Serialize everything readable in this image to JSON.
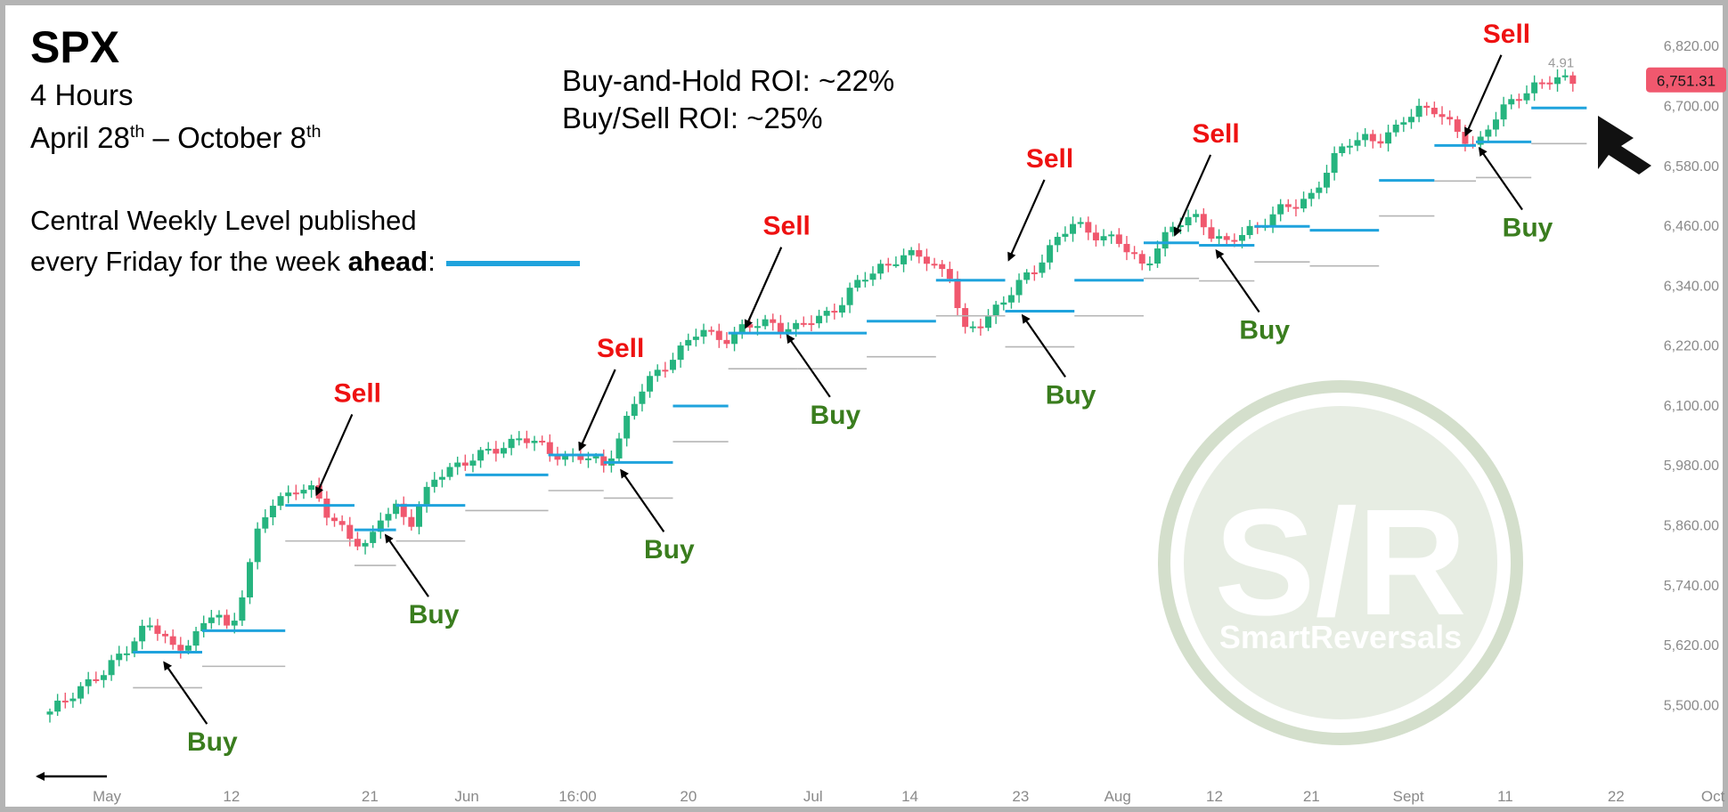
{
  "header": {
    "ticker": "SPX",
    "timeframe": "4 Hours",
    "date_range": {
      "start_month": "April 28",
      "start_suffix": "th",
      "separator": " – ",
      "end_month": "October 8",
      "end_suffix": "th"
    },
    "legend_line1": "Central Weekly Level published",
    "legend_line2_prefix": "every Friday for the week ",
    "legend_line2_bold": "ahead",
    "legend_line2_suffix": ":",
    "roi_buy_hold": "Buy-and-Hold ROI: ~22%",
    "roi_buy_sell": "Buy/Sell ROI: ~25%"
  },
  "colors": {
    "up": "#26b47f",
    "down": "#f0586e",
    "level": "#1fa3dd",
    "sell_text": "#ee1111",
    "buy_text": "#3a7d1e",
    "price_badge": "#f0586e",
    "watermark": "#d4dfcc"
  },
  "price_badge": "6,751.31",
  "small_label": "4.91",
  "watermark": {
    "big": "S/R",
    "small": "SmartReversals"
  },
  "chart_data": {
    "type": "candlestick",
    "y_ticks": [
      5500,
      5620,
      5740,
      5860,
      5980,
      6100,
      6220,
      6340,
      6460,
      6580,
      6700,
      6820
    ],
    "y_tick_labels": [
      "5,500.00",
      "5,620.00",
      "5,740.00",
      "5,860.00",
      "5,980.00",
      "6,100.00",
      "6,220.00",
      "6,340.00",
      "6,460.00",
      "6,580.00",
      "6,700.00",
      "6,820.00"
    ],
    "x_tick_labels": [
      {
        "label": "May",
        "bar": 0
      },
      {
        "label": "12",
        "bar": 9
      },
      {
        "label": "21",
        "bar": 19
      },
      {
        "label": "Jun",
        "bar": 26
      },
      {
        "label": "16:00",
        "bar": 34
      },
      {
        "label": "20",
        "bar": 42
      },
      {
        "label": "Jul",
        "bar": 51
      },
      {
        "label": "14",
        "bar": 58
      },
      {
        "label": "23",
        "bar": 66
      },
      {
        "label": "Aug",
        "bar": 73
      },
      {
        "label": "12",
        "bar": 80
      },
      {
        "label": "21",
        "bar": 87
      },
      {
        "label": "Sept",
        "bar": 94
      },
      {
        "label": "11",
        "bar": 101
      },
      {
        "label": "22",
        "bar": 109
      },
      {
        "label": "Oct",
        "bar": 116
      }
    ],
    "close_path": [
      [
        0,
        5480
      ],
      [
        2,
        5535
      ],
      [
        4,
        5560
      ],
      [
        5,
        5600
      ],
      [
        7,
        5660
      ],
      [
        8,
        5640
      ],
      [
        9,
        5610
      ],
      [
        11,
        5650
      ],
      [
        12,
        5690
      ],
      [
        13,
        5640
      ],
      [
        15,
        5840
      ],
      [
        16,
        5900
      ],
      [
        17,
        5920
      ],
      [
        18,
        5940
      ],
      [
        19,
        5925
      ],
      [
        20,
        5880
      ],
      [
        21,
        5860
      ],
      [
        22,
        5830
      ],
      [
        23,
        5810
      ],
      [
        24,
        5880
      ],
      [
        25,
        5900
      ],
      [
        26,
        5860
      ],
      [
        27,
        5910
      ],
      [
        28,
        5960
      ],
      [
        29,
        5980
      ],
      [
        30,
        5985
      ],
      [
        31,
        5995
      ],
      [
        32,
        6010
      ],
      [
        33,
        6025
      ],
      [
        34,
        6035
      ],
      [
        35,
        6020
      ],
      [
        36,
        6010
      ],
      [
        37,
        6000
      ],
      [
        38,
        5995
      ],
      [
        39,
        5990
      ],
      [
        40,
        5980
      ],
      [
        41,
        6030
      ],
      [
        42,
        6090
      ],
      [
        43,
        6140
      ],
      [
        44,
        6170
      ],
      [
        45,
        6200
      ],
      [
        46,
        6220
      ],
      [
        47,
        6250
      ],
      [
        48,
        6240
      ],
      [
        49,
        6235
      ],
      [
        50,
        6250
      ],
      [
        51,
        6260
      ],
      [
        52,
        6270
      ],
      [
        53,
        6255
      ],
      [
        54,
        6250
      ],
      [
        55,
        6270
      ],
      [
        56,
        6285
      ],
      [
        57,
        6300
      ],
      [
        58,
        6330
      ],
      [
        59,
        6360
      ],
      [
        60,
        6380
      ],
      [
        61,
        6390
      ],
      [
        62,
        6395
      ],
      [
        63,
        6400
      ],
      [
        64,
        6380
      ],
      [
        65,
        6360
      ],
      [
        66,
        6240
      ],
      [
        67,
        6260
      ],
      [
        68,
        6290
      ],
      [
        69,
        6310
      ],
      [
        70,
        6340
      ],
      [
        71,
        6370
      ],
      [
        72,
        6410
      ],
      [
        73,
        6440
      ],
      [
        74,
        6460
      ],
      [
        75,
        6450
      ],
      [
        76,
        6440
      ],
      [
        77,
        6430
      ],
      [
        78,
        6400
      ],
      [
        79,
        6380
      ],
      [
        80,
        6420
      ],
      [
        81,
        6450
      ],
      [
        82,
        6470
      ],
      [
        83,
        6480
      ],
      [
        84,
        6440
      ],
      [
        85,
        6420
      ],
      [
        86,
        6440
      ],
      [
        87,
        6460
      ],
      [
        88,
        6475
      ],
      [
        89,
        6490
      ],
      [
        90,
        6500
      ],
      [
        91,
        6520
      ],
      [
        92,
        6560
      ],
      [
        93,
        6600
      ],
      [
        94,
        6630
      ],
      [
        95,
        6640
      ],
      [
        96,
        6630
      ],
      [
        97,
        6640
      ],
      [
        98,
        6680
      ],
      [
        99,
        6700
      ],
      [
        100,
        6690
      ],
      [
        101,
        6660
      ],
      [
        102,
        6640
      ],
      [
        103,
        6620
      ],
      [
        104,
        6660
      ],
      [
        105,
        6690
      ],
      [
        106,
        6720
      ],
      [
        107,
        6740
      ],
      [
        108,
        6745
      ],
      [
        109,
        6750
      ],
      [
        110,
        6751.31
      ]
    ],
    "central_levels": [
      {
        "x0": 6,
        "x1": 11,
        "y": 5605
      },
      {
        "x0": 11,
        "x1": 17,
        "y": 5648
      },
      {
        "x0": 17,
        "x1": 22,
        "y": 5899
      },
      {
        "x0": 22,
        "x1": 25,
        "y": 5850
      },
      {
        "x0": 25,
        "x1": 30,
        "y": 5899
      },
      {
        "x0": 30,
        "x1": 36,
        "y": 5960
      },
      {
        "x0": 36,
        "x1": 40,
        "y": 6000
      },
      {
        "x0": 40,
        "x1": 45,
        "y": 5985
      },
      {
        "x0": 45,
        "x1": 49,
        "y": 6098
      },
      {
        "x0": 49,
        "x1": 54,
        "y": 6244
      },
      {
        "x0": 54,
        "x1": 59,
        "y": 6244
      },
      {
        "x0": 59,
        "x1": 64,
        "y": 6268
      },
      {
        "x0": 64,
        "x1": 69,
        "y": 6350
      },
      {
        "x0": 69,
        "x1": 74,
        "y": 6288
      },
      {
        "x0": 74,
        "x1": 79,
        "y": 6350
      },
      {
        "x0": 79,
        "x1": 83,
        "y": 6425
      },
      {
        "x0": 83,
        "x1": 87,
        "y": 6420
      },
      {
        "x0": 87,
        "x1": 91,
        "y": 6458
      },
      {
        "x0": 91,
        "x1": 96,
        "y": 6450
      },
      {
        "x0": 96,
        "x1": 100,
        "y": 6550
      },
      {
        "x0": 100,
        "x1": 103,
        "y": 6620
      },
      {
        "x0": 103,
        "x1": 107,
        "y": 6627
      },
      {
        "x0": 107,
        "x1": 111,
        "y": 6695
      }
    ],
    "signals": [
      {
        "type": "Buy",
        "bar": 8,
        "price": 5595
      },
      {
        "type": "Sell",
        "bar": 19,
        "price": 5910
      },
      {
        "type": "Buy",
        "bar": 24,
        "price": 5850
      },
      {
        "type": "Sell",
        "bar": 38,
        "price": 6000
      },
      {
        "type": "Buy",
        "bar": 41,
        "price": 5980
      },
      {
        "type": "Sell",
        "bar": 50,
        "price": 6245
      },
      {
        "type": "Buy",
        "bar": 53,
        "price": 6250
      },
      {
        "type": "Sell",
        "bar": 69,
        "price": 6380
      },
      {
        "type": "Buy",
        "bar": 70,
        "price": 6290
      },
      {
        "type": "Sell",
        "bar": 81,
        "price": 6430
      },
      {
        "type": "Buy",
        "bar": 84,
        "price": 6420
      },
      {
        "type": "Sell",
        "bar": 102,
        "price": 6630
      },
      {
        "type": "Buy",
        "bar": 103,
        "price": 6625
      }
    ]
  }
}
